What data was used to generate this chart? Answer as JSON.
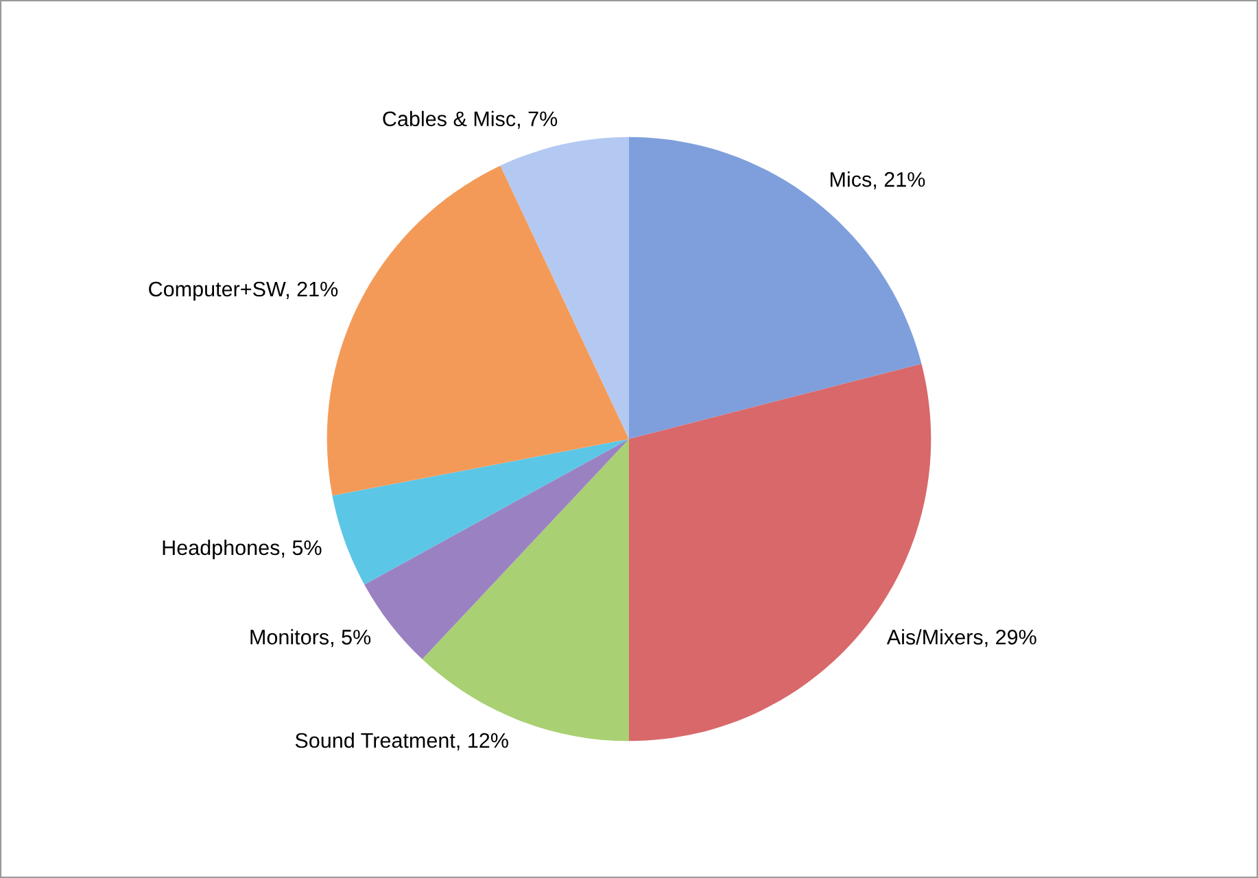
{
  "chart_data": {
    "type": "pie",
    "categories": [
      "Mics",
      "Ais/Mixers",
      "Sound Treatment",
      "Monitors",
      "Headphones",
      "Computer+SW",
      "Cables & Misc"
    ],
    "values": [
      21,
      29,
      12,
      5,
      5,
      21,
      7
    ],
    "value_labels": [
      "21%",
      "29%",
      "12%",
      "5%",
      "5%",
      "21%",
      "7%"
    ],
    "colors": [
      "#7f9fdc",
      "#d8686a",
      "#a9d072",
      "#9a82c2",
      "#5cc6e6",
      "#f49a58",
      "#b3c9f2"
    ],
    "legend": false
  }
}
